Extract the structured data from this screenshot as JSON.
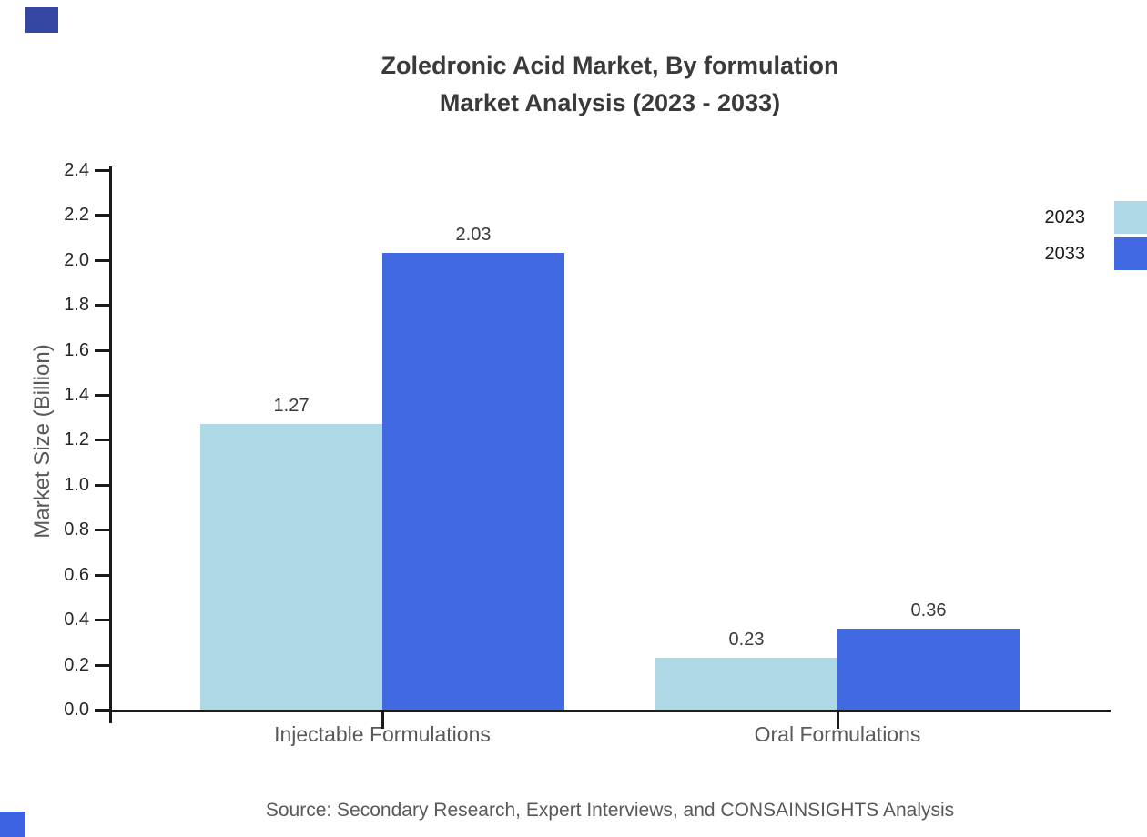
{
  "title": {
    "line1": "Zoledronic Acid Market, By formulation",
    "line2": "Market Analysis (2023 - 2033)"
  },
  "source": "Source: Secondary Research, Expert Interviews, and CONSAINSIGHTS Analysis",
  "chart_data": {
    "type": "bar",
    "title": "Zoledronic Acid Market, By formulation Market Analysis (2023 - 2033)",
    "categories": [
      "Injectable Formulations",
      "Oral Formulations"
    ],
    "series": [
      {
        "name": "2023",
        "color": "#ADD8E6",
        "values": [
          1.27,
          0.23
        ],
        "labels": [
          "1.27",
          "0.23"
        ]
      },
      {
        "name": "2033",
        "color": "#4169E1",
        "values": [
          2.03,
          0.36
        ],
        "labels": [
          "2.03",
          "0.36"
        ]
      }
    ],
    "xlabel": "",
    "ylabel": "Market Size (Billion)",
    "ylim": [
      0.0,
      2.4
    ],
    "ytick_step": 0.2,
    "ytick_labels": [
      "0.0",
      "0.2",
      "0.4",
      "0.6",
      "0.8",
      "1.0",
      "1.2",
      "1.4",
      "1.6",
      "1.8",
      "2.0",
      "2.2",
      "2.4"
    ],
    "grid": false,
    "legend_position": "upper-right",
    "data_labels_shown": true
  },
  "colors": {
    "series_2023": "#ADD8E6",
    "series_2033": "#4169E1",
    "axis": "#1a1a1a",
    "title_text": "#3a3a3a",
    "tick_text": "#262626",
    "muted_text": "#595959",
    "corner_top": "#3647a3",
    "corner_bottom": "#3d63e3"
  }
}
